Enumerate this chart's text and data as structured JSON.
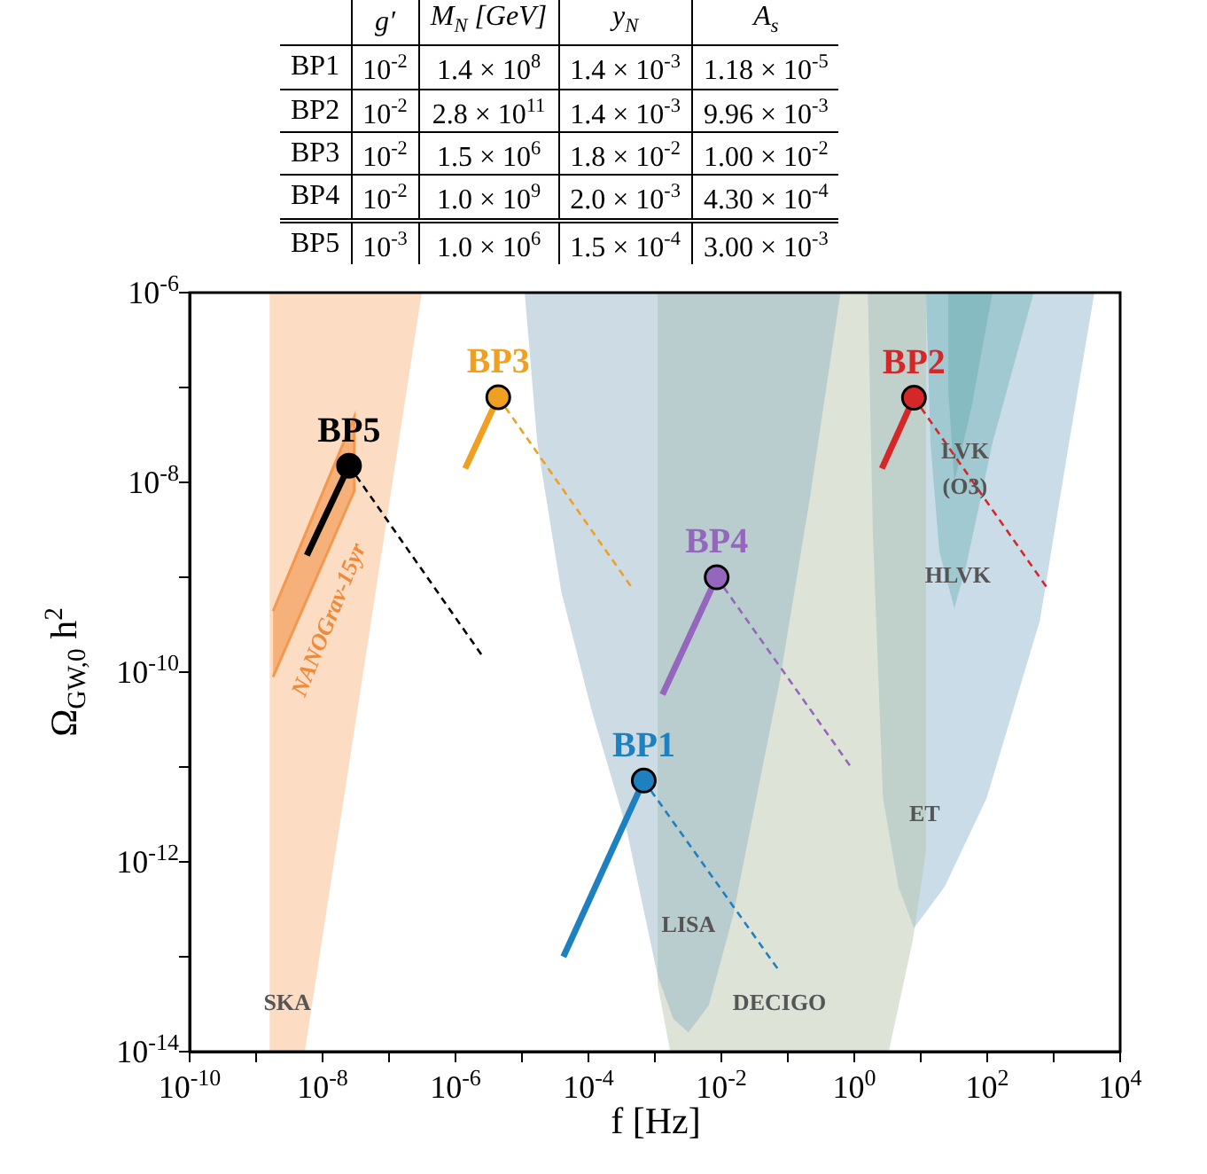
{
  "chart_data": {
    "type": "line",
    "xlabel": "f [Hz]",
    "ylabel": "Ω$_{GW,0}$ h$^{2}$",
    "xlim": [
      1e-10,
      10000.0
    ],
    "ylim": [
      1e-14,
      1e-06
    ],
    "xticks": [
      {
        "value": 1e-10,
        "label": "10$^{-10}$"
      },
      {
        "value": 1e-09,
        "label": null
      },
      {
        "value": 1e-08,
        "label": "10$^{-8}$"
      },
      {
        "value": 1e-07,
        "label": null
      },
      {
        "value": 1e-06,
        "label": "10$^{-6}$"
      },
      {
        "value": 1e-05,
        "label": null
      },
      {
        "value": 0.0001,
        "label": "10$^{-4}$"
      },
      {
        "value": 0.001,
        "label": null
      },
      {
        "value": 0.01,
        "label": "10$^{-2}$"
      },
      {
        "value": 0.1,
        "label": null
      },
      {
        "value": 1,
        "label": "10$^{0}$"
      },
      {
        "value": 10,
        "label": null
      },
      {
        "value": 100,
        "label": "10$^{2}$"
      },
      {
        "value": 1000,
        "label": null
      },
      {
        "value": 10000,
        "label": "10$^{4}$"
      }
    ],
    "yticks": [
      {
        "value": 1e-14,
        "label": "10$^{-14}$"
      },
      {
        "value": 1e-13,
        "label": null
      },
      {
        "value": 1e-12,
        "label": "10$^{-12}$"
      },
      {
        "value": 1e-11,
        "label": null
      },
      {
        "value": 1e-10,
        "label": "10$^{-10}$"
      },
      {
        "value": 1e-09,
        "label": null
      },
      {
        "value": 1e-08,
        "label": "10$^{-8}$"
      },
      {
        "value": 1e-07,
        "label": null
      },
      {
        "value": 1e-06,
        "label": "10$^{-6}$"
      }
    ],
    "log": "xy",
    "grid": false,
    "legend": false,
    "series": [
      {
        "type": "area",
        "name": "SKA",
        "color": "#f6a35e",
        "x": [
          1.6e-09,
          3.1e-07,
          5.4e-09,
          1.6e-09
        ],
        "values": [
          1e-06,
          1e-06,
          1e-14,
          1e-14
        ]
      },
      {
        "type": "area",
        "name": "NANOGrav-15yr",
        "color": "#f08a3a",
        "x": [
          1.8e-09,
          3e-08,
          3e-08,
          1.8e-09
        ],
        "values": [
          4.4e-10,
          4.9e-08,
          8.1e-09,
          8.9e-11
        ]
      },
      {
        "type": "area",
        "name": "LISA",
        "color": "#8fb0c3",
        "x": [
          1.1e-05,
          1.7e-05,
          3.9e-05,
          0.00011,
          0.00037,
          0.0011,
          0.0019,
          0.0032,
          0.0065,
          0.015,
          0.041,
          0.076,
          0.21,
          0.62
        ],
        "values": [
          1e-06,
          2.6e-08,
          7.1e-10,
          4.1e-11,
          2.3e-12,
          6.3e-14,
          2.2e-14,
          1.6e-14,
          3.1e-14,
          2.7e-13,
          9.5e-12,
          8.3e-11,
          6.2e-09,
          1e-06
        ]
      },
      {
        "type": "area",
        "name": "DECIGO",
        "color": "#b4c4a6",
        "x": [
          0.0011,
          0.0011,
          0.0017,
          3.3,
          7.6,
          12,
          12
        ],
        "values": [
          1e-06,
          5.1e-14,
          1e-14,
          1e-14,
          1.5e-13,
          1.3e-12,
          1e-06
        ]
      },
      {
        "type": "area",
        "name": "ET",
        "color": "#88b2cb",
        "x": [
          1.6,
          1.9,
          2.7,
          4.6,
          7.9,
          23,
          98,
          620,
          1700,
          4100
        ],
        "values": [
          1e-06,
          3e-09,
          4.7e-12,
          5.5e-13,
          2e-13,
          5.5e-13,
          4.7e-12,
          3.5e-10,
          2.6e-08,
          1e-06
        ]
      },
      {
        "type": "area",
        "name": "HLVK",
        "color": "#6fbab0",
        "x": [
          12,
          14,
          19,
          32,
          48,
          120,
          500
        ],
        "values": [
          1e-06,
          2.6e-08,
          1.9e-09,
          4.7e-10,
          1.3e-09,
          2.6e-08,
          1e-06
        ]
      },
      {
        "type": "area",
        "name": "LVK (O3)",
        "color": "#3f9a8a",
        "x": [
          26,
          26,
          32,
          58,
          120
        ],
        "values": [
          1e-06,
          9.3e-08,
          1e-08,
          6.2e-08,
          1e-06
        ]
      },
      {
        "type": "line",
        "color": "#1f80c0",
        "line_style": "solid",
        "x": [
          4.2e-05,
          0.00068
        ],
        "values": [
          1e-13,
          7.2e-12
        ]
      },
      {
        "type": "line",
        "color": "#1f80c0",
        "line_style": "dashed",
        "x": [
          0.00068,
          0.071
        ],
        "values": [
          7.2e-12,
          7.4e-14
        ]
      },
      {
        "type": "scatter",
        "name": "BP1",
        "color": "#1f80c0",
        "marker": "circle",
        "x": [
          0.00068
        ],
        "values": [
          7.2e-12
        ]
      },
      {
        "type": "line",
        "color": "#d62728",
        "line_style": "solid",
        "x": [
          2.6,
          7.9
        ],
        "values": [
          1.4e-08,
          7.8e-08
        ]
      },
      {
        "type": "line",
        "color": "#d62728",
        "line_style": "dashed",
        "x": [
          7.9,
          810
        ],
        "values": [
          7.8e-08,
          7.6e-10
        ]
      },
      {
        "type": "scatter",
        "name": "BP2",
        "color": "#d62728",
        "marker": "circle",
        "x": [
          7.9
        ],
        "values": [
          7.8e-08
        ]
      },
      {
        "type": "line",
        "color": "#f0a020",
        "line_style": "solid",
        "x": [
          1.4e-06,
          4.4e-06
        ],
        "values": [
          1.4e-08,
          7.9e-08
        ]
      },
      {
        "type": "line",
        "color": "#f0a020",
        "line_style": "dashed",
        "x": [
          4.4e-06,
          0.00046
        ],
        "values": [
          7.9e-08,
          7.6e-10
        ]
      },
      {
        "type": "scatter",
        "name": "BP3",
        "color": "#f0a020",
        "marker": "circle",
        "x": [
          4.4e-06
        ],
        "values": [
          7.9e-08
        ]
      },
      {
        "type": "line",
        "color": "#9467bd",
        "line_style": "solid",
        "x": [
          0.0013,
          0.0085
        ],
        "values": [
          5.8e-11,
          1e-09
        ]
      },
      {
        "type": "line",
        "color": "#9467bd",
        "line_style": "dashed",
        "x": [
          0.0085,
          0.89
        ],
        "values": [
          1e-09,
          1e-11
        ]
      },
      {
        "type": "scatter",
        "name": "BP4",
        "color": "#9467bd",
        "marker": "circle",
        "x": [
          0.0085
        ],
        "values": [
          1e-09
        ]
      },
      {
        "type": "line",
        "color": "#000000",
        "line_style": "solid",
        "x": [
          5.8e-09,
          2.5e-08
        ],
        "values": [
          1.7e-09,
          1.5e-08
        ]
      },
      {
        "type": "line",
        "color": "#000000",
        "line_style": "dashed",
        "x": [
          2.5e-08,
          2.5e-06
        ],
        "values": [
          1.5e-08,
          1.5e-10
        ]
      },
      {
        "type": "scatter",
        "name": "BP5",
        "color": "#000000",
        "marker": "circle",
        "x": [
          2.5e-08
        ],
        "values": [
          1.5e-08
        ]
      }
    ],
    "annotations": [
      "g′",
      "M$_{N}$ [GeV]",
      "y$_{N}$",
      "A$_{s}$",
      "BP1",
      "10$^{-2}$",
      "1.4 × 10$^{8}$",
      "1.4 × 10$^{-3}$",
      "1.18 × 10$^{-5}$",
      "BP2",
      "10$^{-2}$",
      "2.8 × 10$^{11}$",
      "1.4 × 10$^{-3}$",
      "9.96 × 10$^{-3}$",
      "BP3",
      "10$^{-2}$",
      "1.5 × 10$^{6}$",
      "1.8 × 10$^{-2}$",
      "1.00 × 10$^{-2}$",
      "BP4",
      "10$^{-2}$",
      "1.0 × 10$^{9}$",
      "2.0 × 10$^{-3}$",
      "4.30 × 10$^{-4}$",
      "BP5",
      "10$^{-3}$",
      "1.0 × 10$^{6}$",
      "1.5 × 10$^{-4}$",
      "3.00 × 10$^{-3}$"
    ]
  }
}
